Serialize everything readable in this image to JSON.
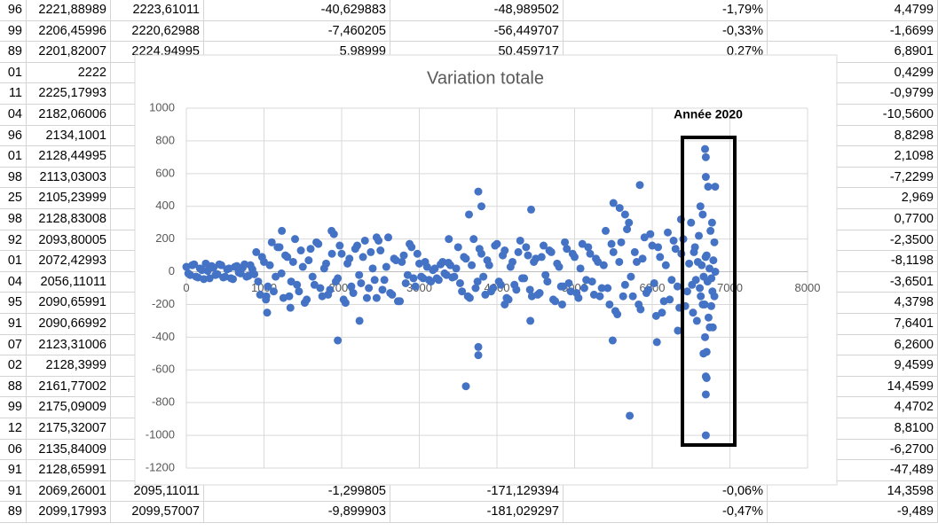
{
  "spreadsheet": {
    "rows": [
      [
        "96",
        "2221,88989",
        "2223,61011",
        "-40,629883",
        "-48,989502",
        "-1,79%",
        "4,4799"
      ],
      [
        "99",
        "2206,45996",
        "2220,62988",
        "-7,460205",
        "-56,449707",
        "-0,33%",
        "-1,6699"
      ],
      [
        "89",
        "2201,82007",
        "2224,94995",
        "5,98999",
        "50,459717",
        "0,27%",
        "6,8901"
      ],
      [
        "01",
        "2222",
        null,
        null,
        null,
        null,
        "0,4299"
      ],
      [
        "11",
        "2225,17993",
        null,
        null,
        null,
        null,
        "-0,9799"
      ],
      [
        "04",
        "2182,06006",
        "2",
        null,
        null,
        null,
        "-10,5600"
      ],
      [
        "96",
        "2134,1001",
        "2",
        null,
        null,
        null,
        "8,8298"
      ],
      [
        "01",
        "2128,44995",
        "2",
        null,
        null,
        null,
        "2,1098"
      ],
      [
        "98",
        "2113,03003",
        "2",
        null,
        null,
        null,
        "-7,2299"
      ],
      [
        "25",
        "2105,23999",
        null,
        null,
        null,
        null,
        "2,969"
      ],
      [
        "98",
        "2128,83008",
        "2",
        null,
        null,
        null,
        "0,7700"
      ],
      [
        "92",
        "2093,80005",
        "2",
        null,
        null,
        null,
        "-2,3500"
      ],
      [
        "01",
        "2072,42993",
        "2",
        null,
        null,
        null,
        "-8,1198"
      ],
      [
        "04",
        "2056,11011",
        "2",
        null,
        null,
        null,
        "-3,6501"
      ],
      [
        "95",
        "2090,65991",
        "2",
        null,
        null,
        null,
        "4,3798"
      ],
      [
        "91",
        "2090,66992",
        "2",
        null,
        null,
        null,
        "7,6401"
      ],
      [
        "07",
        "2123,31006",
        "2",
        null,
        null,
        null,
        "6,2600"
      ],
      [
        "02",
        "2128,3999",
        "2",
        null,
        null,
        null,
        "9,4599"
      ],
      [
        "88",
        "2161,77002",
        null,
        null,
        null,
        null,
        "14,4599"
      ],
      [
        "99",
        "2175,09009",
        "2",
        null,
        null,
        null,
        "4,4702"
      ],
      [
        "12",
        "2175,32007",
        "2",
        null,
        null,
        null,
        "8,8100"
      ],
      [
        "06",
        "2135,84009",
        "2",
        null,
        null,
        null,
        "-6,2700"
      ],
      [
        "91",
        "2128,65991",
        null,
        null,
        null,
        null,
        "-47,489"
      ],
      [
        "91",
        "2069,26001",
        "2095,11011",
        "-1,299805",
        "-171,129394",
        "-0,06%",
        "14,3598"
      ],
      [
        "89",
        "2099,17993",
        "2099,57007",
        "-9,899903",
        "-181,029297",
        "-0,47%",
        "-9,489"
      ]
    ]
  },
  "chart_data": {
    "type": "scatter",
    "title": "Variation totale",
    "annotation": "Année 2020",
    "color": "#4472c4",
    "grid": true,
    "xlim": [
      0,
      8000
    ],
    "xticks": [
      0,
      1000,
      2000,
      3000,
      4000,
      5000,
      6000,
      7000,
      8000
    ],
    "ylim": [
      -1200,
      1000
    ],
    "yticks": [
      -1200,
      -1000,
      -800,
      -600,
      -400,
      -200,
      0,
      200,
      400,
      600,
      800,
      1000
    ],
    "x": [
      0,
      50,
      100,
      150,
      200,
      250,
      300,
      350,
      400,
      450,
      500,
      550,
      600,
      650,
      700,
      750,
      800,
      850,
      25,
      75,
      125,
      175,
      225,
      275,
      325,
      375,
      425,
      475,
      525,
      575,
      625,
      675,
      725,
      775,
      825,
      875,
      900,
      950,
      1000,
      1050,
      1100,
      1150,
      1200,
      1250,
      1300,
      1350,
      1400,
      1450,
      1500,
      1550,
      1600,
      1650,
      1700,
      1750,
      1800,
      1850,
      1900,
      1950,
      2000,
      2050,
      2100,
      2150,
      2200,
      2250,
      2300,
      2350,
      2400,
      2450,
      2500,
      2550,
      2600,
      2650,
      2700,
      2750,
      2800,
      2850,
      2900,
      2950,
      925,
      975,
      1025,
      1075,
      1125,
      1175,
      1225,
      1275,
      1325,
      1375,
      1425,
      1475,
      1525,
      1575,
      1625,
      1675,
      1725,
      1775,
      1825,
      1875,
      1925,
      1975,
      2025,
      2075,
      2125,
      2175,
      2225,
      2275,
      2325,
      2375,
      2425,
      2475,
      2525,
      2575,
      2625,
      2675,
      2725,
      2775,
      2825,
      2875,
      2925,
      2975,
      3000,
      3050,
      3100,
      3150,
      3200,
      3250,
      3300,
      3350,
      3400,
      3450,
      3025,
      3075,
      3125,
      3175,
      3225,
      3275,
      3325,
      3375,
      3425,
      3475,
      3500,
      3550,
      3600,
      3650,
      3700,
      3750,
      3800,
      3850,
      3900,
      3950,
      4000,
      4050,
      4100,
      4150,
      4200,
      4250,
      4300,
      4350,
      4400,
      4450,
      4500,
      4550,
      4600,
      4650,
      4700,
      4750,
      4800,
      4850,
      4900,
      4950,
      5000,
      5050,
      5100,
      5150,
      5200,
      5250,
      5300,
      5350,
      3525,
      3575,
      3625,
      3675,
      3725,
      3775,
      3825,
      3875,
      3925,
      3975,
      4025,
      4075,
      4125,
      4175,
      4225,
      4275,
      4325,
      4375,
      4425,
      4475,
      4525,
      4575,
      4625,
      4675,
      4725,
      4775,
      4825,
      4875,
      4925,
      4975,
      5025,
      5075,
      5125,
      5175,
      5225,
      5275,
      5325,
      5375,
      5400,
      5450,
      5500,
      5550,
      5600,
      5650,
      5700,
      5750,
      5800,
      5850,
      5900,
      5950,
      6000,
      6050,
      6100,
      6150,
      6200,
      6250,
      6300,
      6350,
      6400,
      6450,
      5425,
      5475,
      5525,
      5575,
      5625,
      5675,
      5725,
      5775,
      5825,
      5875,
      5925,
      5975,
      6025,
      6075,
      6125,
      6175,
      6225,
      6275,
      6325,
      6375,
      6425,
      6475,
      6500,
      6525,
      6550,
      6575,
      6600,
      6625,
      6650,
      6675,
      6700,
      6725,
      6750,
      6775,
      6800,
      6512,
      6537,
      6562,
      6587,
      6612,
      6637,
      6662,
      6687,
      6712,
      6737,
      6762,
      6787,
      6812,
      1950,
      3600,
      3760,
      3760,
      3760,
      3640,
      3800,
      4440,
      4430,
      5710,
      5840,
      6060,
      6370,
      6330,
      6680,
      6690,
      6690,
      6720,
      6810,
      6770,
      6690,
      6700,
      6690,
      6690,
      6660,
      6700,
      6680,
      6740,
      6780,
      6760,
      6620,
      6650,
      6800,
      5500,
      5580,
      5650,
      5490,
      1230,
      1030,
      1040,
      1870,
      2450,
      2230,
      1340,
      4100,
      4840,
      3380
    ],
    "values": [
      30,
      -20,
      45,
      -35,
      10,
      50,
      -40,
      25,
      -15,
      40,
      -30,
      20,
      -45,
      35,
      -10,
      45,
      -25,
      15,
      -10,
      40,
      -30,
      20,
      -45,
      5,
      35,
      -20,
      45,
      -35,
      15,
      -40,
      30,
      -5,
      25,
      -30,
      40,
      -15,
      120,
      -140,
      60,
      -90,
      180,
      -30,
      150,
      -160,
      90,
      -60,
      200,
      -120,
      30,
      -170,
      140,
      -80,
      170,
      -150,
      50,
      -110,
      230,
      -40,
      110,
      -190,
      80,
      -130,
      160,
      -70,
      190,
      -100,
      20,
      -160,
      130,
      -50,
      210,
      -140,
      70,
      -180,
      100,
      -20,
      150,
      -90,
      -60,
      90,
      -170,
      40,
      -120,
      150,
      -10,
      100,
      -150,
      60,
      -80,
      130,
      -190,
      70,
      -30,
      180,
      -100,
      20,
      -140,
      110,
      -60,
      160,
      -170,
      50,
      -90,
      140,
      -20,
      90,
      -160,
      120,
      -50,
      190,
      -110,
      30,
      -130,
      80,
      -180,
      60,
      -70,
      170,
      -40,
      110,
      50,
      -40,
      30,
      -60,
      20,
      -50,
      60,
      -20,
      40,
      -30,
      -30,
      60,
      -50,
      10,
      -40,
      45,
      -10,
      55,
      -35,
      20,
      150,
      -120,
      80,
      -160,
      200,
      -60,
      110,
      -140,
      40,
      -100,
      170,
      -80,
      130,
      -170,
      60,
      -110,
      190,
      -40,
      100,
      -150,
      80,
      -130,
      160,
      -60,
      120,
      -180,
      30,
      -90,
      140,
      -120,
      90,
      -160,
      170,
      -50,
      110,
      -140,
      60,
      -100,
      -70,
      90,
      -150,
      40,
      -100,
      140,
      -30,
      70,
      -120,
      160,
      -60,
      100,
      -160,
      30,
      -80,
      120,
      -40,
      150,
      -110,
      60,
      -140,
      90,
      -20,
      130,
      -170,
      50,
      -90,
      180,
      -70,
      110,
      -130,
      20,
      -100,
      150,
      -60,
      80,
      -150,
      40,
      250,
      -200,
      120,
      -260,
      180,
      -80,
      300,
      -150,
      60,
      -230,
      210,
      -110,
      160,
      -270,
      90,
      -180,
      240,
      -50,
      140,
      -220,
      200,
      -120,
      -100,
      170,
      -240,
      60,
      -150,
      260,
      -30,
      120,
      -200,
      80,
      -130,
      230,
      -70,
      150,
      -250,
      40,
      -170,
      190,
      -90,
      110,
      -210,
      50,
      300,
      -250,
      150,
      -300,
      220,
      -150,
      350,
      -200,
      100,
      -280,
      250,
      -120,
      180,
      -80,
      120,
      -50,
      60,
      -100,
      40,
      -30,
      90,
      -60,
      20,
      -40,
      70,
      0,
      -420,
      -700,
      490,
      -460,
      -510,
      350,
      400,
      380,
      -300,
      -880,
      530,
      -430,
      320,
      -360,
      750,
      700,
      580,
      520,
      520,
      300,
      -640,
      -650,
      -750,
      -1000,
      -500,
      -490,
      -400,
      -340,
      -340,
      -210,
      400,
      -200,
      -150,
      420,
      390,
      350,
      -420,
      250,
      -150,
      -250,
      250,
      210,
      -300,
      -220,
      -200,
      -200,
      200
    ]
  }
}
